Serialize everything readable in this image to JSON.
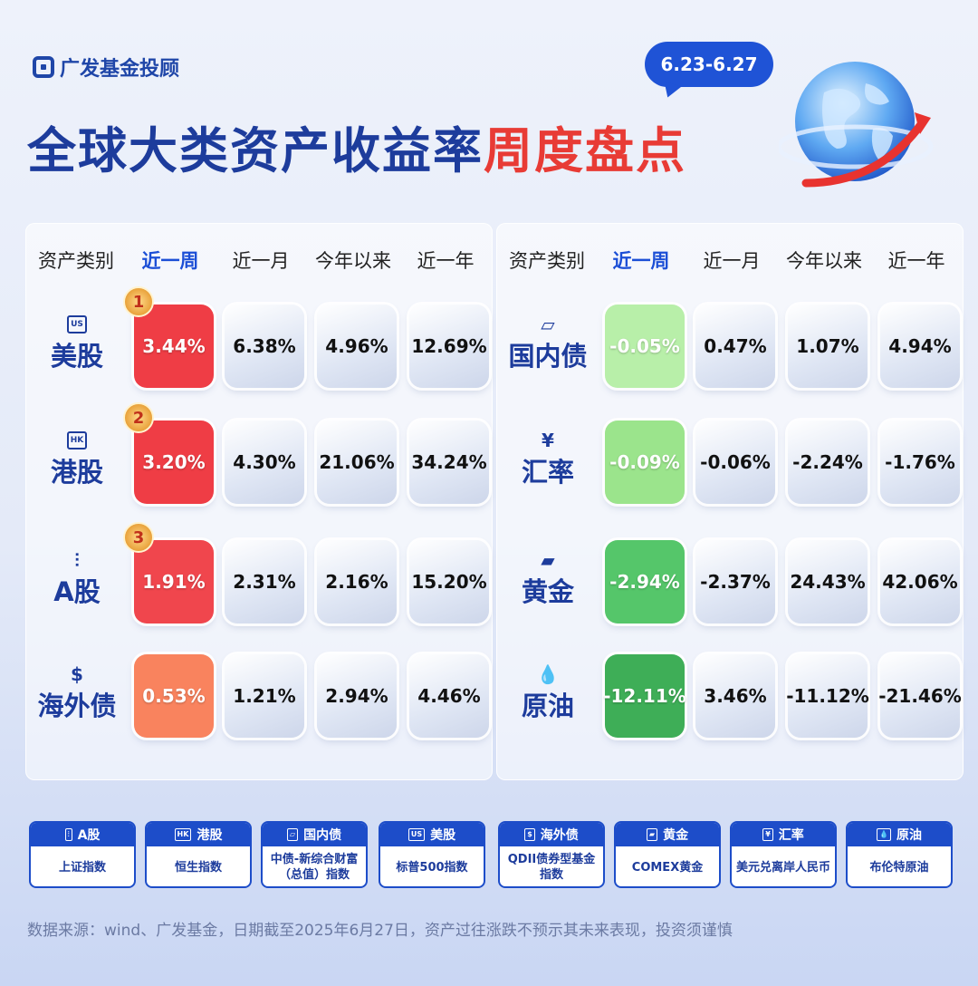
{
  "brand": {
    "name": "广发基金投顾"
  },
  "title": {
    "main": "全球大类资产收益率",
    "highlight": "周度盘点"
  },
  "date_range": "6.23-6.27",
  "headers": [
    "资产类别",
    "近一周",
    "近一月",
    "今年以来",
    "近一年"
  ],
  "left_rows": [
    {
      "icon": "US",
      "name": "美股",
      "rank": "1",
      "values": [
        "3.44%",
        "6.38%",
        "4.96%",
        "12.69%"
      ]
    },
    {
      "icon": "HK",
      "name": "港股",
      "rank": "2",
      "values": [
        "3.20%",
        "4.30%",
        "21.06%",
        "34.24%"
      ]
    },
    {
      "icon": "chart-up-icon",
      "name": "A股",
      "rank": "3",
      "values": [
        "1.91%",
        "2.31%",
        "2.16%",
        "15.20%"
      ]
    },
    {
      "icon": "bond-note-icon",
      "name": "海外债",
      "rank": "",
      "values": [
        "0.53%",
        "1.21%",
        "2.94%",
        "4.46%"
      ]
    }
  ],
  "right_rows": [
    {
      "icon": "chart-icon",
      "name": "国内债",
      "values": [
        "-0.05%",
        "0.47%",
        "1.07%",
        "4.94%"
      ]
    },
    {
      "icon": "¥",
      "name": "汇率",
      "values": [
        "-0.09%",
        "-0.06%",
        "-2.24%",
        "-1.76%"
      ]
    },
    {
      "icon": "gold-bar-icon",
      "name": "黄金",
      "values": [
        "-2.94%",
        "-2.37%",
        "24.43%",
        "42.06%"
      ]
    },
    {
      "icon": "oil-drop-icon",
      "name": "原油",
      "values": [
        "-12.11%",
        "3.46%",
        "-11.12%",
        "-21.46%"
      ]
    }
  ],
  "colors": {
    "left_week": [
      "#ef3d45",
      "#ef3d45",
      "#f0464d",
      "#f9835e"
    ],
    "right_week": [
      "#b8efa9",
      "#9be48c",
      "#55c66a",
      "#3eae57"
    ]
  },
  "legend": [
    {
      "icon": "chart-up-icon",
      "title": "A股",
      "desc": "上证指数"
    },
    {
      "icon": "HK",
      "title": "港股",
      "desc": "恒生指数"
    },
    {
      "icon": "chart-icon",
      "title": "国内债",
      "desc": "中债-新综合财富（总值）指数"
    },
    {
      "icon": "US",
      "title": "美股",
      "desc": "标普500指数"
    },
    {
      "icon": "bond-note-icon",
      "title": "海外债",
      "desc": "QDII债券型基金指数"
    },
    {
      "icon": "gold-bar-icon",
      "title": "黄金",
      "desc": "COMEX黄金"
    },
    {
      "icon": "¥",
      "title": "汇率",
      "desc": "美元兑离岸人民币"
    },
    {
      "icon": "oil-drop-icon",
      "title": "原油",
      "desc": "布伦特原油"
    }
  ],
  "footer": "数据来源：wind、广发基金，日期截至2025年6月27日，资产过往涨跌不预示其未来表现，投资须谨慎"
}
